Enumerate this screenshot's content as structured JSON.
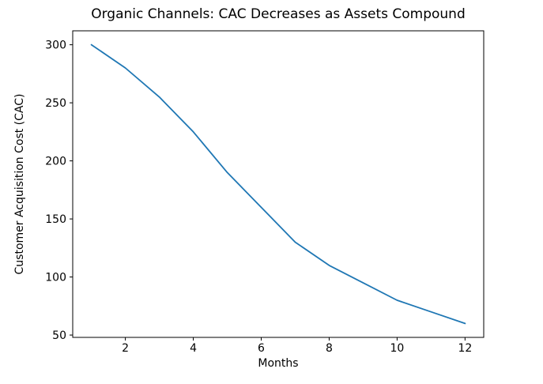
{
  "chart_data": {
    "type": "line",
    "title": "Organic Channels: CAC Decreases as Assets Compound",
    "xlabel": "Months",
    "ylabel": "Customer Acquisition Cost (CAC)",
    "x": [
      1,
      2,
      3,
      4,
      5,
      6,
      7,
      8,
      9,
      10,
      11,
      12
    ],
    "series": [
      {
        "name": "CAC",
        "values": [
          300,
          280,
          255,
          225,
          190,
          160,
          130,
          110,
          95,
          80,
          70,
          60
        ]
      }
    ],
    "xticks": [
      2,
      4,
      6,
      8,
      10,
      12
    ],
    "yticks": [
      50,
      100,
      150,
      200,
      250,
      300
    ],
    "xlim": [
      0.45,
      12.55
    ],
    "ylim": [
      48,
      312
    ],
    "grid": false,
    "legend_position": "none",
    "line_color": "#1f77b4",
    "axis_color": "#000000",
    "background_color": "#ffffff"
  }
}
